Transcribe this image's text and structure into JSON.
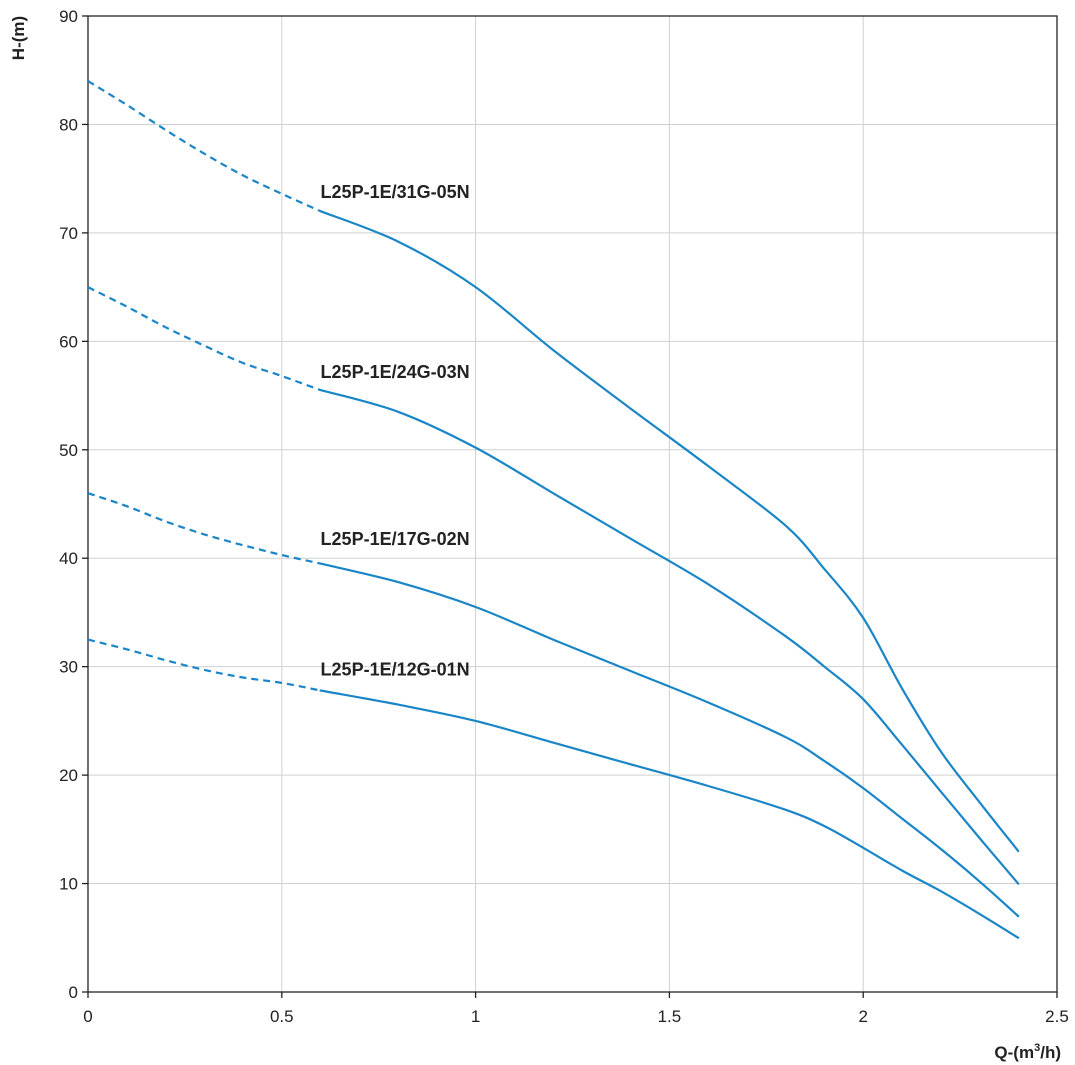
{
  "chart_data": {
    "type": "line",
    "xlabel": "Q-(m³/h)",
    "ylabel": "H-(m)",
    "xlim": [
      0,
      2.5
    ],
    "ylim": [
      0,
      90
    ],
    "x_ticks": [
      "0",
      "0.5",
      "1",
      "1.5",
      "2",
      "2.5"
    ],
    "y_ticks": [
      "0",
      "10",
      "20",
      "30",
      "40",
      "50",
      "60",
      "70",
      "80",
      "90"
    ],
    "grid": true,
    "line_color": "#1a86c8",
    "series": [
      {
        "name": "L25P-1E/31G-05N",
        "label_at": [
          0.6,
          73.2
        ],
        "dashed": {
          "x": [
            0,
            0.1,
            0.2,
            0.3,
            0.4,
            0.5,
            0.6
          ],
          "y": [
            84,
            81.8,
            79.5,
            77.3,
            75.3,
            73.6,
            72
          ]
        },
        "solid": {
          "x": [
            0.6,
            0.8,
            1.0,
            1.2,
            1.4,
            1.6,
            1.8,
            1.9,
            2.0,
            2.1,
            2.2,
            2.3,
            2.4
          ],
          "y": [
            72,
            69.2,
            65,
            59.2,
            53.8,
            48.5,
            43,
            39,
            34.5,
            28,
            22.2,
            17.5,
            13
          ]
        }
      },
      {
        "name": "L25P-1E/24G-03N",
        "label_at": [
          0.6,
          56.6
        ],
        "dashed": {
          "x": [
            0,
            0.1,
            0.2,
            0.3,
            0.4,
            0.5,
            0.6
          ],
          "y": [
            65,
            63.2,
            61.3,
            59.6,
            58,
            56.8,
            55.5
          ]
        },
        "solid": {
          "x": [
            0.6,
            0.8,
            1.0,
            1.2,
            1.4,
            1.6,
            1.8,
            1.9,
            2.0,
            2.1,
            2.2,
            2.3,
            2.4
          ],
          "y": [
            55.5,
            53.5,
            50.2,
            46,
            41.8,
            37.6,
            32.8,
            30,
            27,
            22.8,
            18.5,
            14.2,
            10
          ]
        }
      },
      {
        "name": "L25P-1E/17G-02N",
        "label_at": [
          0.6,
          41.2
        ],
        "dashed": {
          "x": [
            0,
            0.1,
            0.2,
            0.3,
            0.4,
            0.5,
            0.6
          ],
          "y": [
            46,
            44.8,
            43.4,
            42.2,
            41.2,
            40.3,
            39.5
          ]
        },
        "solid": {
          "x": [
            0.6,
            0.8,
            1.0,
            1.2,
            1.4,
            1.6,
            1.8,
            1.9,
            2.0,
            2.1,
            2.2,
            2.3,
            2.4
          ],
          "y": [
            39.5,
            37.8,
            35.5,
            32.5,
            29.6,
            26.7,
            23.5,
            21.3,
            18.8,
            16,
            13.2,
            10.2,
            7
          ]
        }
      },
      {
        "name": "L25P-1E/12G-01N",
        "label_at": [
          0.6,
          29.2
        ],
        "dashed": {
          "x": [
            0,
            0.1,
            0.2,
            0.3,
            0.4,
            0.5,
            0.6
          ],
          "y": [
            32.5,
            31.6,
            30.6,
            29.7,
            29,
            28.5,
            27.8
          ]
        },
        "solid": {
          "x": [
            0.6,
            0.8,
            1.0,
            1.2,
            1.4,
            1.6,
            1.8,
            1.9,
            2.0,
            2.1,
            2.2,
            2.3,
            2.4
          ],
          "y": [
            27.8,
            26.5,
            25,
            23,
            21,
            19,
            16.8,
            15.3,
            13.3,
            11.2,
            9.3,
            7.2,
            5
          ]
        }
      }
    ]
  }
}
